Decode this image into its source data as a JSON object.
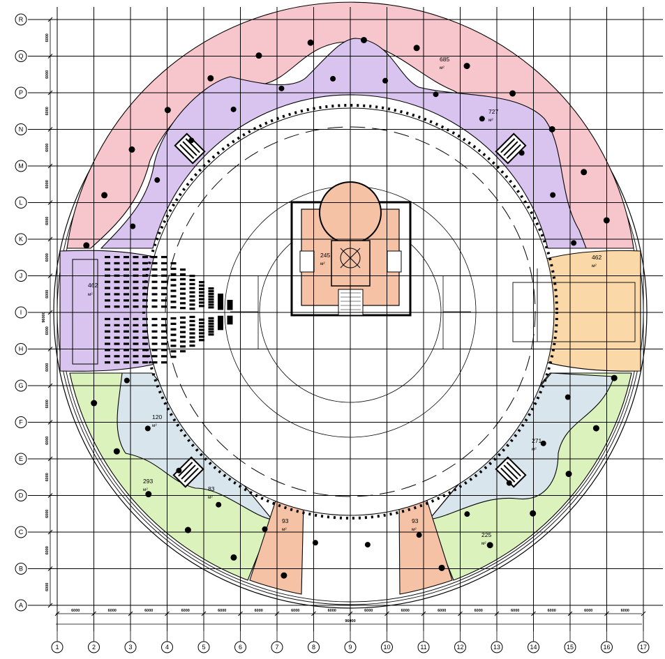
{
  "plan": {
    "grid_x_labels": [
      "1",
      "2",
      "3",
      "4",
      "5",
      "6",
      "7",
      "8",
      "9",
      "10",
      "11",
      "12",
      "13",
      "14",
      "15",
      "16",
      "17"
    ],
    "grid_y_labels": [
      "R",
      "Q",
      "P",
      "N",
      "M",
      "L",
      "K",
      "J",
      "I",
      "H",
      "G",
      "F",
      "E",
      "D",
      "C",
      "B",
      "A"
    ],
    "bay_dimension": "6000",
    "overall_dimension": "96000",
    "area_unit": "м²",
    "area_labels": [
      {
        "id": "north-outer",
        "value": "685"
      },
      {
        "id": "north-inner",
        "value": "727"
      },
      {
        "id": "west-auditorium",
        "value": "462"
      },
      {
        "id": "east-hall",
        "value": "462"
      },
      {
        "id": "core",
        "value": "245"
      },
      {
        "id": "sw-inner",
        "value": "120"
      },
      {
        "id": "sw-outer",
        "value": "293"
      },
      {
        "id": "sw-small",
        "value": "83"
      },
      {
        "id": "south-left",
        "value": "93"
      },
      {
        "id": "south-right",
        "value": "93"
      },
      {
        "id": "se-inner",
        "value": "271"
      },
      {
        "id": "se-outer",
        "value": "225"
      }
    ],
    "zone_colors": {
      "pink": "#f7c5cc",
      "purple": "#d9c3ef",
      "green": "#dcf2bd",
      "lightblue": "#d8e5ec",
      "salmon": "#f5c2a6",
      "orange": "#fbd8a8"
    }
  }
}
